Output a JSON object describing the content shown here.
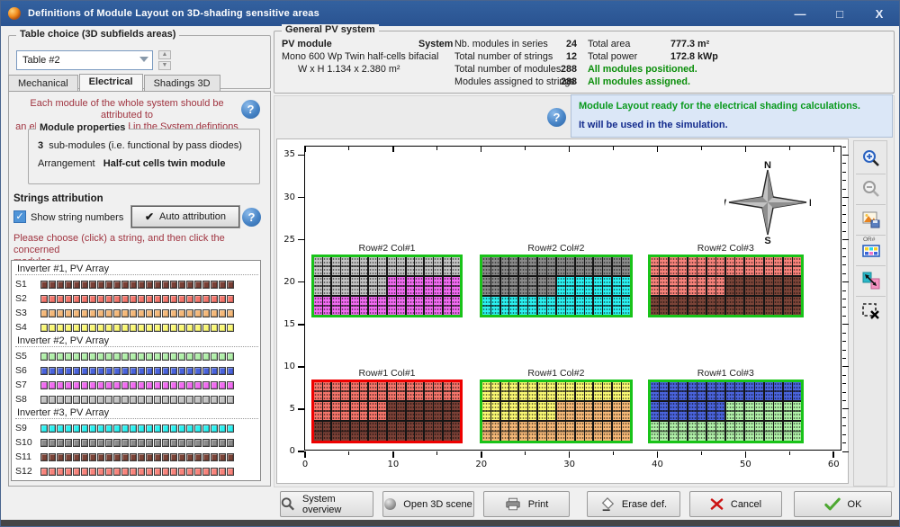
{
  "window": {
    "title": "Definitions of Module Layout on 3D-shading sensitive areas",
    "controls": {
      "minimize": "—",
      "maximize": "□",
      "close": "X"
    }
  },
  "table_choice": {
    "label": "Table choice  (3D subfields areas)",
    "selected": "Table #2"
  },
  "tabs": [
    {
      "label": "Mechanical"
    },
    {
      "label": "Electrical"
    },
    {
      "label": "Shadings 3D"
    }
  ],
  "electrical": {
    "instruction1a": "Each module of the whole system should be attributed to",
    "instruction1b": "an electrical string defined in the System defintions",
    "module_properties": {
      "label": "Module properties",
      "submodules_value": "3",
      "submodules_text": "sub-modules (i.e. functional by pass diodes)",
      "arrangement_label": "Arrangement",
      "arrangement_value": "Half-cut cells twin module"
    },
    "strings_attribution_label": "Strings attribution",
    "show_string_numbers": "Show string numbers",
    "auto_attribution": "Auto attribution",
    "check_glyph": "✔",
    "help_glyph": "?",
    "instruction2a": "Please choose (click) a string, and then click the concerned",
    "instruction2b": "modules"
  },
  "strings_panel": {
    "groups": [
      {
        "label": "Inverter #1, PV Array",
        "strings": [
          {
            "id": "S1",
            "color": "#7A4036",
            "modules": 24
          },
          {
            "id": "S2",
            "color": "#F4756B",
            "modules": 24
          },
          {
            "id": "S3",
            "color": "#F5B878",
            "modules": 24
          },
          {
            "id": "S4",
            "color": "#FAF873",
            "modules": 24
          }
        ]
      },
      {
        "label": "Inverter #2, PV Array",
        "strings": [
          {
            "id": "S5",
            "color": "#B0F0A8",
            "modules": 24
          },
          {
            "id": "S6",
            "color": "#4A63DC",
            "modules": 24
          },
          {
            "id": "S7",
            "color": "#F26BF2",
            "modules": 24
          },
          {
            "id": "S8",
            "color": "#C3C3C3",
            "modules": 24
          }
        ]
      },
      {
        "label": "Inverter #3, PV Array",
        "strings": [
          {
            "id": "S9",
            "color": "#2BF2F2",
            "modules": 24
          },
          {
            "id": "S10",
            "color": "#8A8A8A",
            "modules": 24
          },
          {
            "id": "S11",
            "color": "#7B4438",
            "modules": 24
          },
          {
            "id": "S12",
            "color": "#F8837B",
            "modules": 24
          }
        ]
      }
    ]
  },
  "general_pv_system": {
    "label": "General PV system",
    "pv_module_label": "PV module",
    "pv_module_name": "Mono 600 Wp Twin half-cells bifacial",
    "pv_module_size": "W x H   1.134 x 2.380 m²",
    "system_label": "System",
    "rows": [
      {
        "label": "Nb. modules in series",
        "value": "24",
        "label2": "Total area",
        "value2": "777.3 m²"
      },
      {
        "label": "Total number of strings",
        "value": "12",
        "label2": "Total power",
        "value2": "172.8 kWp"
      },
      {
        "label": "Total number of modules",
        "value": "288",
        "note": "All modules positioned."
      },
      {
        "label": "Modules assigned to strings",
        "value": "288",
        "note": "All modules assigned."
      }
    ]
  },
  "status": {
    "line1": "Module Layout ready for the electrical shading calculations.",
    "line2": "It will be used in the simulation."
  },
  "chart_data": {
    "type": "module-layout-plan",
    "x_range": [
      0,
      61
    ],
    "y_range": [
      0,
      36
    ],
    "x_ticks": [
      0,
      10,
      20,
      30,
      40,
      50,
      60
    ],
    "y_ticks": [
      0,
      5,
      10,
      15,
      20,
      25,
      30,
      35
    ],
    "compass": {
      "n": "N",
      "e": "E",
      "s": "S",
      "w": "W"
    },
    "module_grid": {
      "columns": 16,
      "rows": 3,
      "modules_per_table": 48,
      "split_rule": "top string = top row + left half of middle row; bottom string = right half of middle row + bottom row"
    },
    "blocks": [
      {
        "label": "Row#2 Col#1",
        "x": [
          0.7,
          17.9
        ],
        "y": [
          15.8,
          23.3
        ],
        "top_string": "S8",
        "bottom_string": "S7",
        "selected": false
      },
      {
        "label": "Row#2 Col#2",
        "x": [
          19.8,
          37.2
        ],
        "y": [
          15.8,
          23.3
        ],
        "top_string": "S10",
        "bottom_string": "S9",
        "selected": false
      },
      {
        "label": "Row#2 Col#3",
        "x": [
          38.9,
          56.6
        ],
        "y": [
          15.8,
          23.3
        ],
        "top_string": "S12",
        "bottom_string": "S11",
        "selected": false
      },
      {
        "label": "Row#1 Col#1",
        "x": [
          0.7,
          17.9
        ],
        "y": [
          1.0,
          8.5
        ],
        "top_string": "S2",
        "bottom_string": "S1",
        "selected": true
      },
      {
        "label": "Row#1 Col#2",
        "x": [
          19.8,
          37.2
        ],
        "y": [
          1.0,
          8.5
        ],
        "top_string": "S4",
        "bottom_string": "S3",
        "selected": false
      },
      {
        "label": "Row#1 Col#3",
        "x": [
          38.9,
          56.6
        ],
        "y": [
          1.0,
          8.5
        ],
        "top_string": "S6",
        "bottom_string": "S5",
        "selected": false
      }
    ]
  },
  "side_toolbar": [
    {
      "name": "zoom-in"
    },
    {
      "name": "zoom-out"
    },
    {
      "name": "save-image"
    },
    {
      "name": "color-table",
      "tag": "OR#"
    },
    {
      "name": "swap-colors"
    },
    {
      "name": "clear-selection"
    }
  ],
  "bottom_buttons": [
    {
      "label": "System overview"
    },
    {
      "label": "Open 3D scene"
    },
    {
      "label": "Print"
    },
    {
      "label": "Erase def."
    },
    {
      "label": "Cancel"
    },
    {
      "label": "OK"
    }
  ]
}
